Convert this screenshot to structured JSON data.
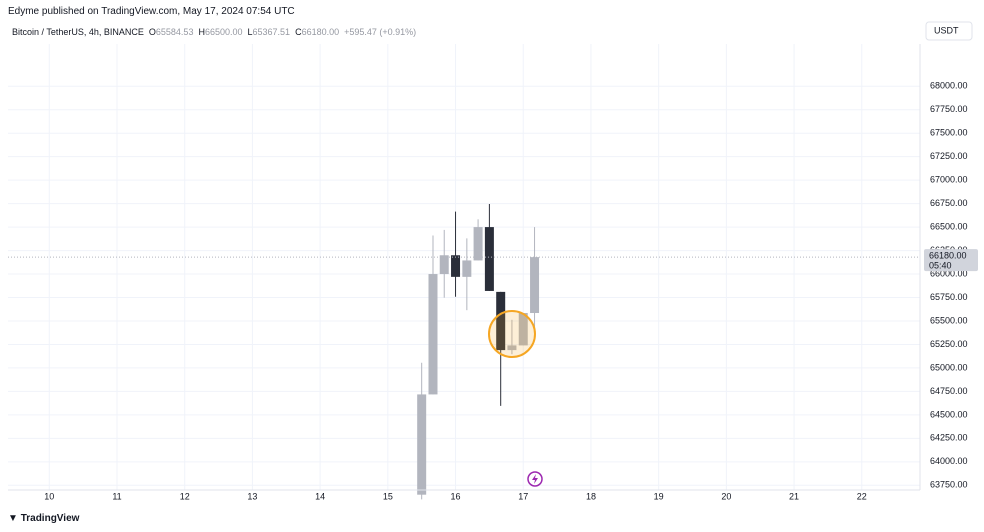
{
  "chart_data": {
    "type": "candlestick",
    "publisher": "Edyme published on TradingView.com, May 17, 2024 07:54 UTC",
    "title": "Bitcoin / TetherUS, 4h, BINANCE",
    "ohlc_legend": [
      {
        "key": "O",
        "value": "65584.53"
      },
      {
        "key": "H",
        "value": "66500.00"
      },
      {
        "key": "L",
        "value": "65367.51"
      },
      {
        "key": "C",
        "value": "66180.00"
      }
    ],
    "change": "+595.47 (+0.91%)",
    "currency": "USDT",
    "last_price": {
      "value": 66180,
      "label": "66180.00"
    },
    "countdown": "05:40",
    "brand": "TradingView",
    "up_color": "#b2b5be",
    "down_color": "#2a2e39",
    "x": [
      15.5,
      15.667,
      15.833,
      16,
      16.167,
      16.333,
      16.5,
      16.667,
      16.833,
      17,
      17.167
    ],
    "open": [
      63650,
      64718,
      66000,
      66200,
      65970,
      66145,
      66500,
      65810,
      65190,
      65240,
      65585
    ],
    "high": [
      65055,
      66410,
      66470,
      66665,
      66380,
      66583,
      66746,
      65810,
      65513,
      65585,
      66500
    ],
    "low": [
      63600,
      64718,
      65748,
      65758,
      65615,
      66145,
      65820,
      64596,
      65146,
      65240,
      65367
    ],
    "close": [
      64718,
      66000,
      66200,
      65970,
      66145,
      66500,
      65820,
      65190,
      65240,
      65585,
      66180
    ],
    "xlim": [
      9.39,
      22.86
    ],
    "xticks": [
      10,
      11,
      12,
      13,
      14,
      15,
      16,
      17,
      18,
      19,
      20,
      21,
      22
    ],
    "ylim": [
      63700,
      68450
    ],
    "yticks": [
      {
        "value": 63750,
        "label": "63750.00"
      },
      {
        "value": 64000,
        "label": "64000.00"
      },
      {
        "value": 64250,
        "label": "64250.00"
      },
      {
        "value": 64500,
        "label": "64500.00"
      },
      {
        "value": 64750,
        "label": "64750.00"
      },
      {
        "value": 65000,
        "label": "65000.00"
      },
      {
        "value": 65250,
        "label": "65250.00"
      },
      {
        "value": 65500,
        "label": "65500.00"
      },
      {
        "value": 65750,
        "label": "65750.00"
      },
      {
        "value": 66000,
        "label": "66000.00"
      },
      {
        "value": 66250,
        "label": "66250.00"
      },
      {
        "value": 66500,
        "label": "66500.00"
      },
      {
        "value": 66750,
        "label": "66750.00"
      },
      {
        "value": 67000,
        "label": "67000.00"
      },
      {
        "value": 67250,
        "label": "67250.00"
      },
      {
        "value": 67500,
        "label": "67500.00"
      },
      {
        "value": 67750,
        "label": "67750.00"
      },
      {
        "value": 68000,
        "label": "68000.00"
      }
    ],
    "grid": true
  }
}
